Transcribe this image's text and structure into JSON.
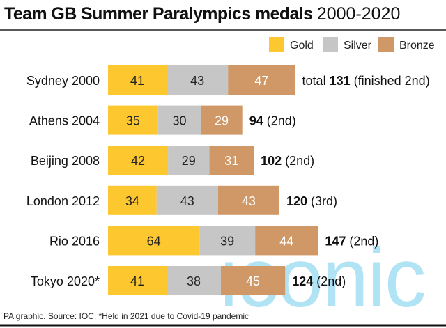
{
  "chart_data": {
    "type": "bar",
    "orientation": "horizontal",
    "stacked": true,
    "title_bold": "Team GB Summer Paralympics medals",
    "title_light": "2000-2020",
    "categories": [
      "Sydney 2000",
      "Athens 2004",
      "Beijing 2008",
      "London 2012",
      "Rio 2016",
      "Tokyo 2020*"
    ],
    "series": [
      {
        "name": "Gold",
        "color": "#fcc72f",
        "values": [
          41,
          35,
          42,
          34,
          64,
          41
        ]
      },
      {
        "name": "Silver",
        "color": "#c6c6c6",
        "values": [
          43,
          30,
          29,
          43,
          39,
          38
        ]
      },
      {
        "name": "Bronze",
        "color": "#cf9866",
        "values": [
          47,
          29,
          31,
          43,
          44,
          45
        ]
      }
    ],
    "totals": [
      131,
      94,
      102,
      120,
      147,
      124
    ],
    "total_prefix": [
      "total ",
      "",
      "",
      "",
      "",
      ""
    ],
    "finish_notes": [
      "(finished 2nd)",
      "(2nd)",
      "(2nd)",
      "(3rd)",
      "(2nd)",
      "(2nd)"
    ],
    "legend_position": "top-right",
    "source": "PA graphic. Source: IOC. *Held in 2021 due to Covid-19 pandemic",
    "watermark": "iconic"
  }
}
